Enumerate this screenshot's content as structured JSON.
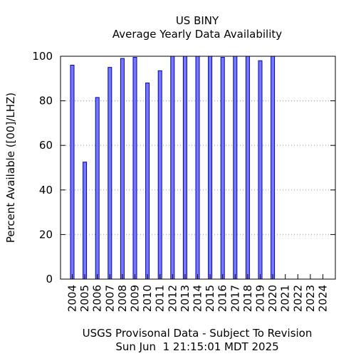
{
  "chart_data": {
    "type": "bar",
    "title": "US BINY",
    "subtitle": "Average Yearly Data Availability",
    "ylabel": "Percent Available ([00]/LHZ)",
    "xlabel": "USGS Provisonal Data - Subject To Revision",
    "timestamp": "Sun Jun  1 21:15:01 MDT 2025",
    "categories": [
      "2004",
      "2005",
      "2006",
      "2007",
      "2008",
      "2009",
      "2010",
      "2011",
      "2012",
      "2013",
      "2014",
      "2015",
      "2016",
      "2017",
      "2018",
      "2019",
      "2020",
      "2021",
      "2022",
      "2023",
      "2024"
    ],
    "values": [
      96,
      52.5,
      81.5,
      95,
      99,
      99.5,
      88,
      93.5,
      100,
      100,
      100,
      100,
      99.5,
      100,
      100,
      98,
      100,
      null,
      null,
      null,
      null
    ],
    "ylim": [
      0,
      100
    ],
    "yticks": [
      0,
      20,
      40,
      60,
      80,
      100
    ],
    "grid": true,
    "bar_color": "#7777ff",
    "bar_edge_color": "#0000aa"
  }
}
